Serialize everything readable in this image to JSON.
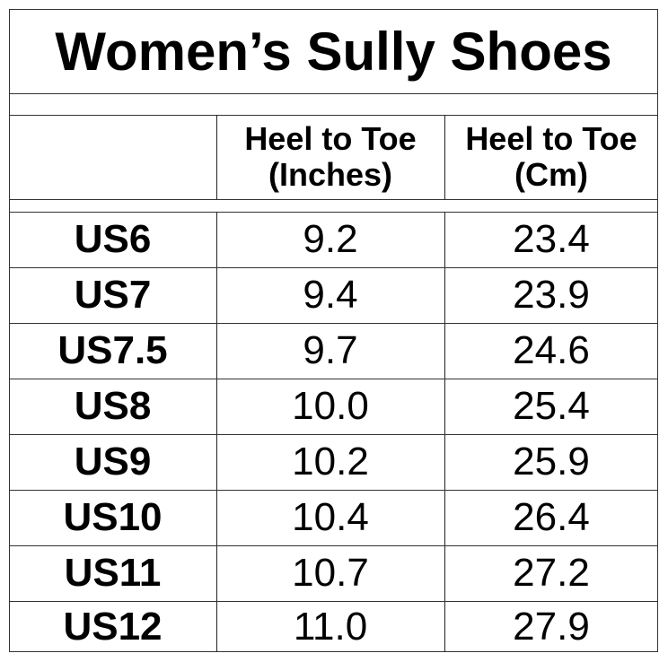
{
  "title": "Women’s Sully Shoes",
  "headers": {
    "size": "",
    "inches": [
      "Heel to Toe",
      "(Inches)"
    ],
    "cm": [
      "Heel to Toe",
      "(Cm)"
    ]
  },
  "rows": [
    {
      "size": "US6",
      "inches": "9.2",
      "cm": "23.4"
    },
    {
      "size": "US7",
      "inches": "9.4",
      "cm": "23.9"
    },
    {
      "size": "US7.5",
      "inches": "9.7",
      "cm": "24.6"
    },
    {
      "size": "US8",
      "inches": "10.0",
      "cm": "25.4"
    },
    {
      "size": "US9",
      "inches": "10.2",
      "cm": "25.9"
    },
    {
      "size": "US10",
      "inches": "10.4",
      "cm": "26.4"
    },
    {
      "size": "US11",
      "inches": "10.7",
      "cm": "27.2"
    },
    {
      "size": "US12",
      "inches": "11.0",
      "cm": "27.9"
    }
  ]
}
